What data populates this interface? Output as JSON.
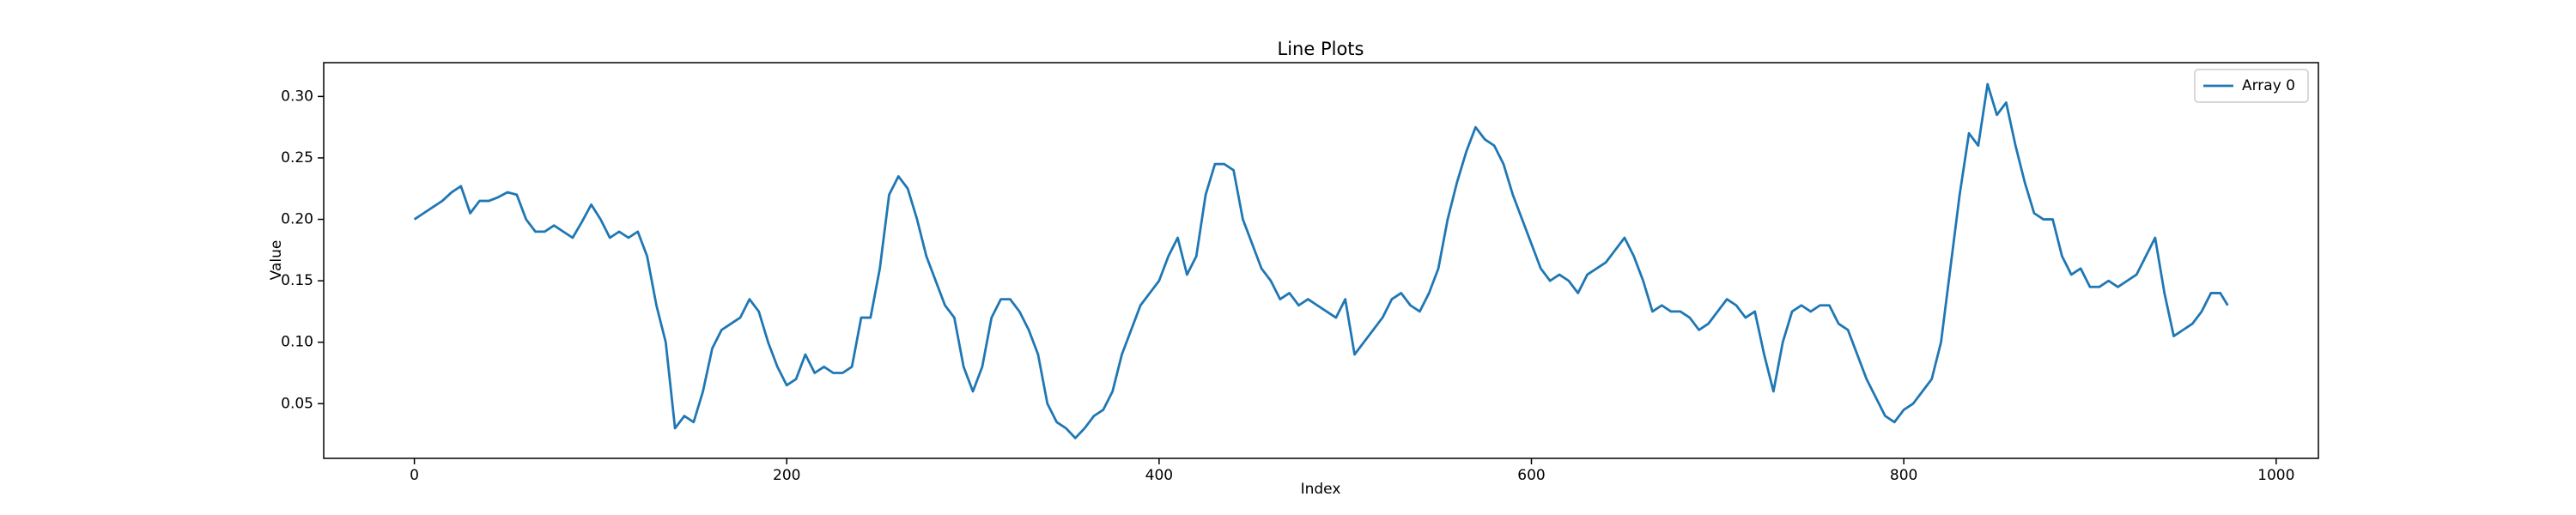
{
  "chart_data": {
    "type": "line",
    "title": "Line Plots",
    "x_label": "Index",
    "y_label": "Value",
    "x": [
      0,
      5,
      10,
      15,
      20,
      25,
      30,
      35,
      40,
      45,
      50,
      55,
      60,
      65,
      70,
      75,
      80,
      85,
      90,
      95,
      100,
      105,
      110,
      115,
      120,
      125,
      130,
      135,
      140,
      145,
      150,
      155,
      160,
      165,
      170,
      175,
      180,
      185,
      190,
      195,
      200,
      205,
      210,
      215,
      220,
      225,
      230,
      235,
      240,
      245,
      250,
      255,
      260,
      265,
      270,
      275,
      280,
      285,
      290,
      295,
      300,
      305,
      310,
      315,
      320,
      325,
      330,
      335,
      340,
      345,
      350,
      355,
      360,
      365,
      370,
      375,
      380,
      385,
      390,
      395,
      400,
      405,
      410,
      415,
      420,
      425,
      430,
      435,
      440,
      445,
      450,
      455,
      460,
      465,
      470,
      475,
      480,
      485,
      490,
      495,
      500,
      505,
      510,
      515,
      520,
      525,
      530,
      535,
      540,
      545,
      550,
      555,
      560,
      565,
      570,
      575,
      580,
      585,
      590,
      595,
      600,
      605,
      610,
      615,
      620,
      625,
      630,
      635,
      640,
      645,
      650,
      655,
      660,
      665,
      670,
      675,
      680,
      685,
      690,
      695,
      700,
      705,
      710,
      715,
      720,
      725,
      730,
      735,
      740,
      745,
      750,
      755,
      760,
      765,
      770,
      775,
      780,
      785,
      790,
      795,
      800,
      805,
      810,
      815,
      820,
      825,
      830,
      835,
      840,
      845,
      850,
      855,
      860,
      865,
      870,
      875,
      880,
      885,
      890,
      895,
      900,
      905,
      910,
      915,
      920,
      925,
      930,
      935,
      940,
      945,
      950,
      955,
      960,
      965,
      970,
      974
    ],
    "series": [
      {
        "name": "Array 0",
        "color": "#1f77b4",
        "values": [
          0.2,
          0.205,
          0.21,
          0.215,
          0.222,
          0.227,
          0.205,
          0.215,
          0.215,
          0.218,
          0.222,
          0.22,
          0.2,
          0.19,
          0.19,
          0.195,
          0.19,
          0.185,
          0.198,
          0.212,
          0.2,
          0.185,
          0.19,
          0.185,
          0.19,
          0.17,
          0.13,
          0.1,
          0.03,
          0.04,
          0.035,
          0.06,
          0.095,
          0.11,
          0.115,
          0.12,
          0.135,
          0.125,
          0.1,
          0.08,
          0.065,
          0.07,
          0.09,
          0.075,
          0.08,
          0.075,
          0.075,
          0.08,
          0.12,
          0.12,
          0.16,
          0.22,
          0.235,
          0.225,
          0.2,
          0.17,
          0.15,
          0.13,
          0.12,
          0.08,
          0.06,
          0.08,
          0.12,
          0.135,
          0.135,
          0.125,
          0.11,
          0.09,
          0.05,
          0.035,
          0.03,
          0.022,
          0.03,
          0.04,
          0.045,
          0.06,
          0.09,
          0.11,
          0.13,
          0.14,
          0.15,
          0.17,
          0.185,
          0.155,
          0.17,
          0.22,
          0.245,
          0.245,
          0.24,
          0.2,
          0.18,
          0.16,
          0.15,
          0.135,
          0.14,
          0.13,
          0.135,
          0.13,
          0.125,
          0.12,
          0.135,
          0.09,
          0.1,
          0.11,
          0.12,
          0.135,
          0.14,
          0.13,
          0.125,
          0.14,
          0.16,
          0.2,
          0.23,
          0.255,
          0.275,
          0.265,
          0.26,
          0.245,
          0.22,
          0.2,
          0.18,
          0.16,
          0.15,
          0.155,
          0.15,
          0.14,
          0.155,
          0.16,
          0.165,
          0.175,
          0.185,
          0.17,
          0.15,
          0.125,
          0.13,
          0.125,
          0.125,
          0.12,
          0.11,
          0.115,
          0.125,
          0.135,
          0.13,
          0.12,
          0.125,
          0.09,
          0.06,
          0.1,
          0.125,
          0.13,
          0.125,
          0.13,
          0.13,
          0.115,
          0.11,
          0.09,
          0.07,
          0.055,
          0.04,
          0.035,
          0.045,
          0.05,
          0.06,
          0.07,
          0.1,
          0.16,
          0.22,
          0.27,
          0.26,
          0.31,
          0.285,
          0.295,
          0.26,
          0.23,
          0.205,
          0.2,
          0.2,
          0.17,
          0.155,
          0.16,
          0.145,
          0.145,
          0.15,
          0.145,
          0.15,
          0.155,
          0.17,
          0.185,
          0.14,
          0.105,
          0.11,
          0.115,
          0.125,
          0.14,
          0.14,
          0.13
        ]
      }
    ],
    "xlim": [
      -48.7,
      1022.7
    ],
    "ylim": [
      0.0055,
      0.3275
    ],
    "xticks": [
      0,
      200,
      400,
      600,
      800,
      1000
    ],
    "yticks": [
      0.05,
      {
        "value": 0.1,
        "label": "0.10"
      },
      0.15,
      {
        "value": 0.2,
        "label": "0.20"
      },
      0.25,
      {
        "value": 0.3,
        "label": "0.30"
      }
    ],
    "legend": "upper right"
  }
}
